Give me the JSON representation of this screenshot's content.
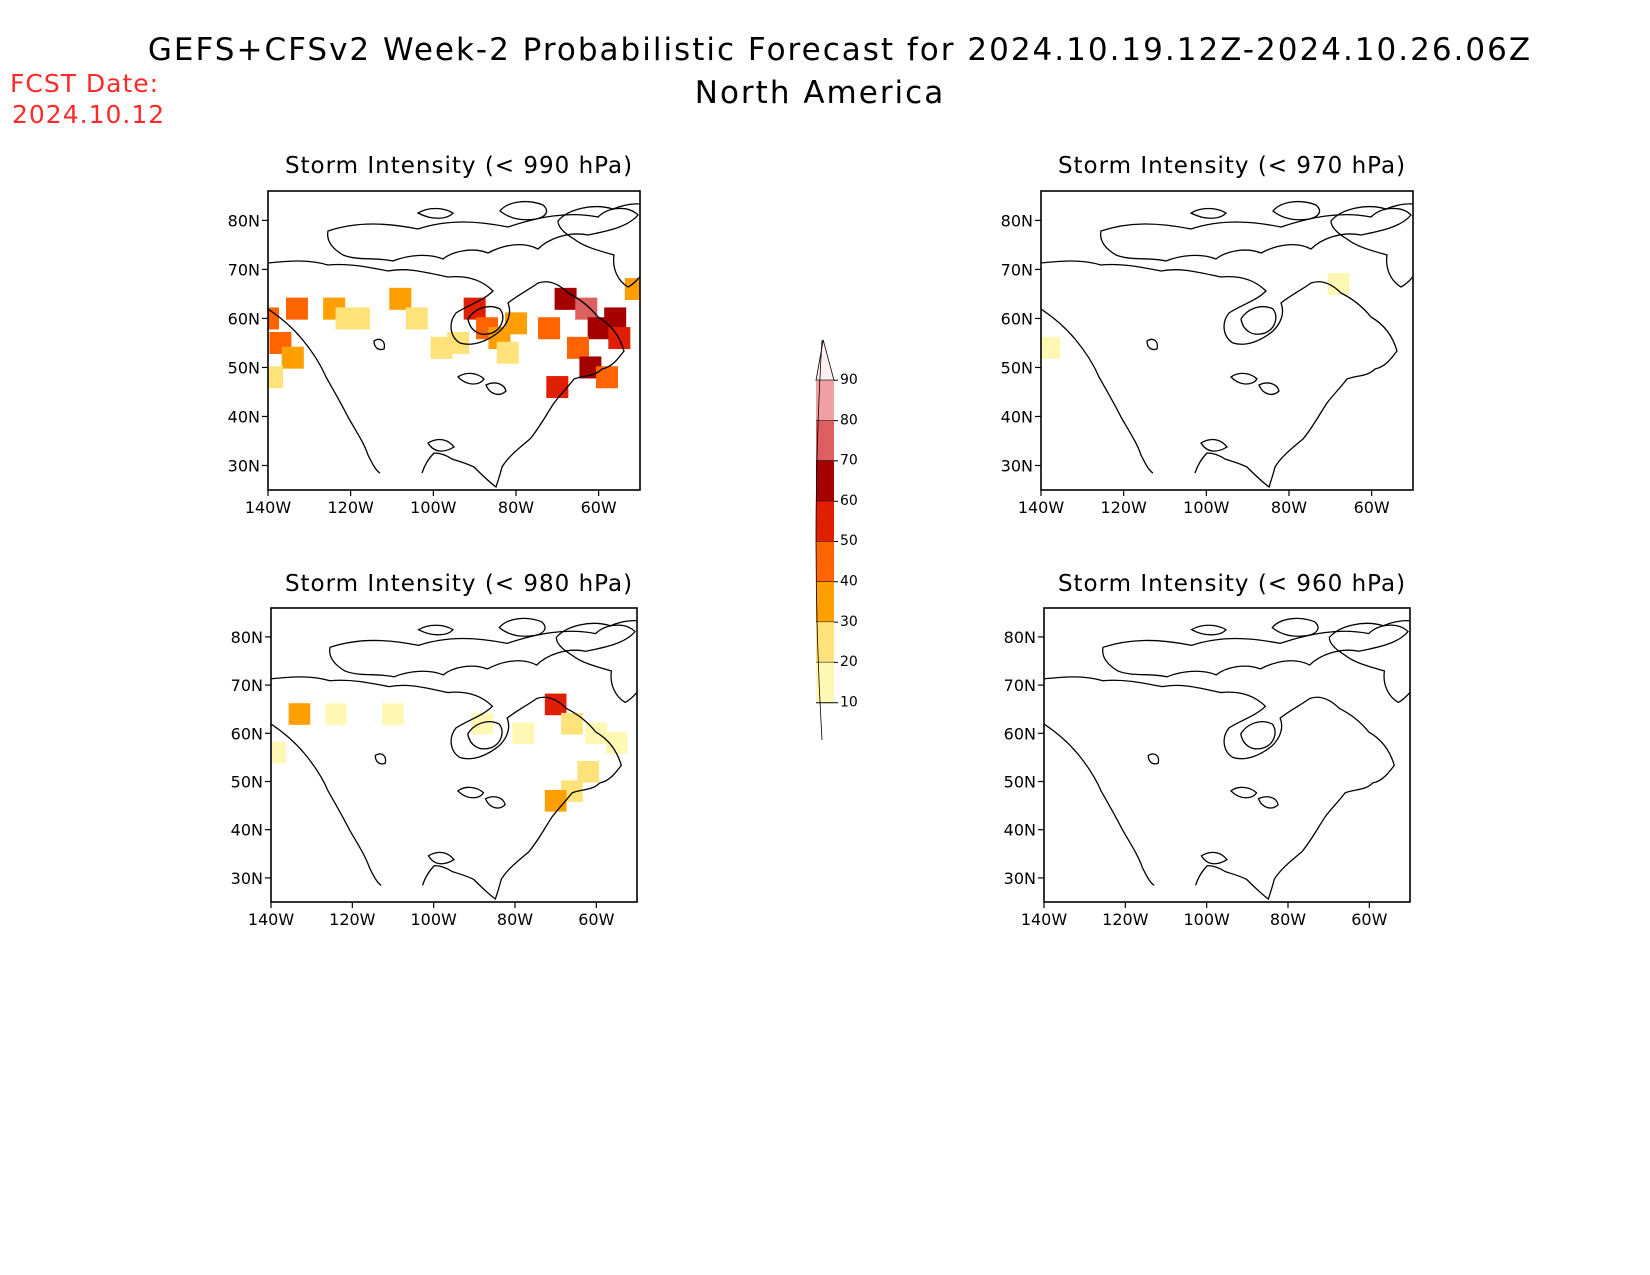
{
  "header": {
    "title": "GEFS+CFSv2 Week-2 Probabilistic Forecast for 2024.10.19.12Z-2024.10.26.06Z",
    "subtitle": "North America",
    "fcst_label": "FCST Date:",
    "fcst_date": "2024.10.12"
  },
  "panels": [
    {
      "id": "p990",
      "title": "Storm Intensity (< 990 hPa)"
    },
    {
      "id": "p970",
      "title": "Storm Intensity (< 970 hPa)"
    },
    {
      "id": "p980",
      "title": "Storm Intensity (< 980 hPa)"
    },
    {
      "id": "p960",
      "title": "Storm Intensity (< 960 hPa)"
    }
  ],
  "axes": {
    "lat_labels": [
      "80N",
      "70N",
      "60N",
      "50N",
      "40N",
      "30N"
    ],
    "lon_labels": [
      "140W",
      "120W",
      "100W",
      "80W",
      "60W"
    ]
  },
  "colorbar": {
    "labels": [
      "90",
      "80",
      "70",
      "60",
      "50",
      "40",
      "30",
      "20",
      "10"
    ],
    "colors": [
      "#fff0f0",
      "#f0a0a0",
      "#dc6060",
      "#a50000",
      "#e01e00",
      "#ff6400",
      "#ffa000",
      "#ffe27a",
      "#fff8b4"
    ]
  },
  "prob_data": {
    "units": "percent probability",
    "p990": [
      {
        "lon": -140,
        "lat": 60,
        "p": 45
      },
      {
        "lon": -137,
        "lat": 55,
        "p": 40
      },
      {
        "lon": -134,
        "lat": 52,
        "p": 35
      },
      {
        "lon": -133,
        "lat": 62,
        "p": 40
      },
      {
        "lon": -139,
        "lat": 48,
        "p": 20
      },
      {
        "lon": -124,
        "lat": 62,
        "p": 35
      },
      {
        "lon": -121,
        "lat": 60,
        "p": 20
      },
      {
        "lon": -118,
        "lat": 60,
        "p": 20
      },
      {
        "lon": -108,
        "lat": 64,
        "p": 30
      },
      {
        "lon": -104,
        "lat": 60,
        "p": 20
      },
      {
        "lon": -98,
        "lat": 54,
        "p": 20
      },
      {
        "lon": -94,
        "lat": 55,
        "p": 20
      },
      {
        "lon": -90,
        "lat": 62,
        "p": 55
      },
      {
        "lon": -87,
        "lat": 58,
        "p": 40
      },
      {
        "lon": -84,
        "lat": 56,
        "p": 35
      },
      {
        "lon": -80,
        "lat": 59,
        "p": 30
      },
      {
        "lon": -82,
        "lat": 53,
        "p": 25
      },
      {
        "lon": -72,
        "lat": 58,
        "p": 40
      },
      {
        "lon": -68,
        "lat": 64,
        "p": 65
      },
      {
        "lon": -63,
        "lat": 62,
        "p": 70
      },
      {
        "lon": -60,
        "lat": 58,
        "p": 65
      },
      {
        "lon": -56,
        "lat": 60,
        "p": 60
      },
      {
        "lon": -55,
        "lat": 56,
        "p": 55
      },
      {
        "lon": -65,
        "lat": 54,
        "p": 40
      },
      {
        "lon": -62,
        "lat": 50,
        "p": 60
      },
      {
        "lon": -58,
        "lat": 48,
        "p": 40
      },
      {
        "lon": -70,
        "lat": 46,
        "p": 55
      },
      {
        "lon": -51,
        "lat": 66,
        "p": 35
      }
    ],
    "p980": [
      {
        "lon": -133,
        "lat": 64,
        "p": 35
      },
      {
        "lon": -139,
        "lat": 56,
        "p": 15
      },
      {
        "lon": -124,
        "lat": 64,
        "p": 15
      },
      {
        "lon": -110,
        "lat": 64,
        "p": 10
      },
      {
        "lon": -88,
        "lat": 62,
        "p": 15
      },
      {
        "lon": -78,
        "lat": 60,
        "p": 15
      },
      {
        "lon": -70,
        "lat": 66,
        "p": 50
      },
      {
        "lon": -66,
        "lat": 62,
        "p": 20
      },
      {
        "lon": -60,
        "lat": 60,
        "p": 15
      },
      {
        "lon": -55,
        "lat": 58,
        "p": 15
      },
      {
        "lon": -62,
        "lat": 52,
        "p": 20
      },
      {
        "lon": -66,
        "lat": 48,
        "p": 25
      },
      {
        "lon": -70,
        "lat": 46,
        "p": 30
      }
    ],
    "p970": [
      {
        "lon": -68,
        "lat": 67,
        "p": 10
      },
      {
        "lon": -138,
        "lat": 54,
        "p": 10
      }
    ],
    "p960": []
  }
}
